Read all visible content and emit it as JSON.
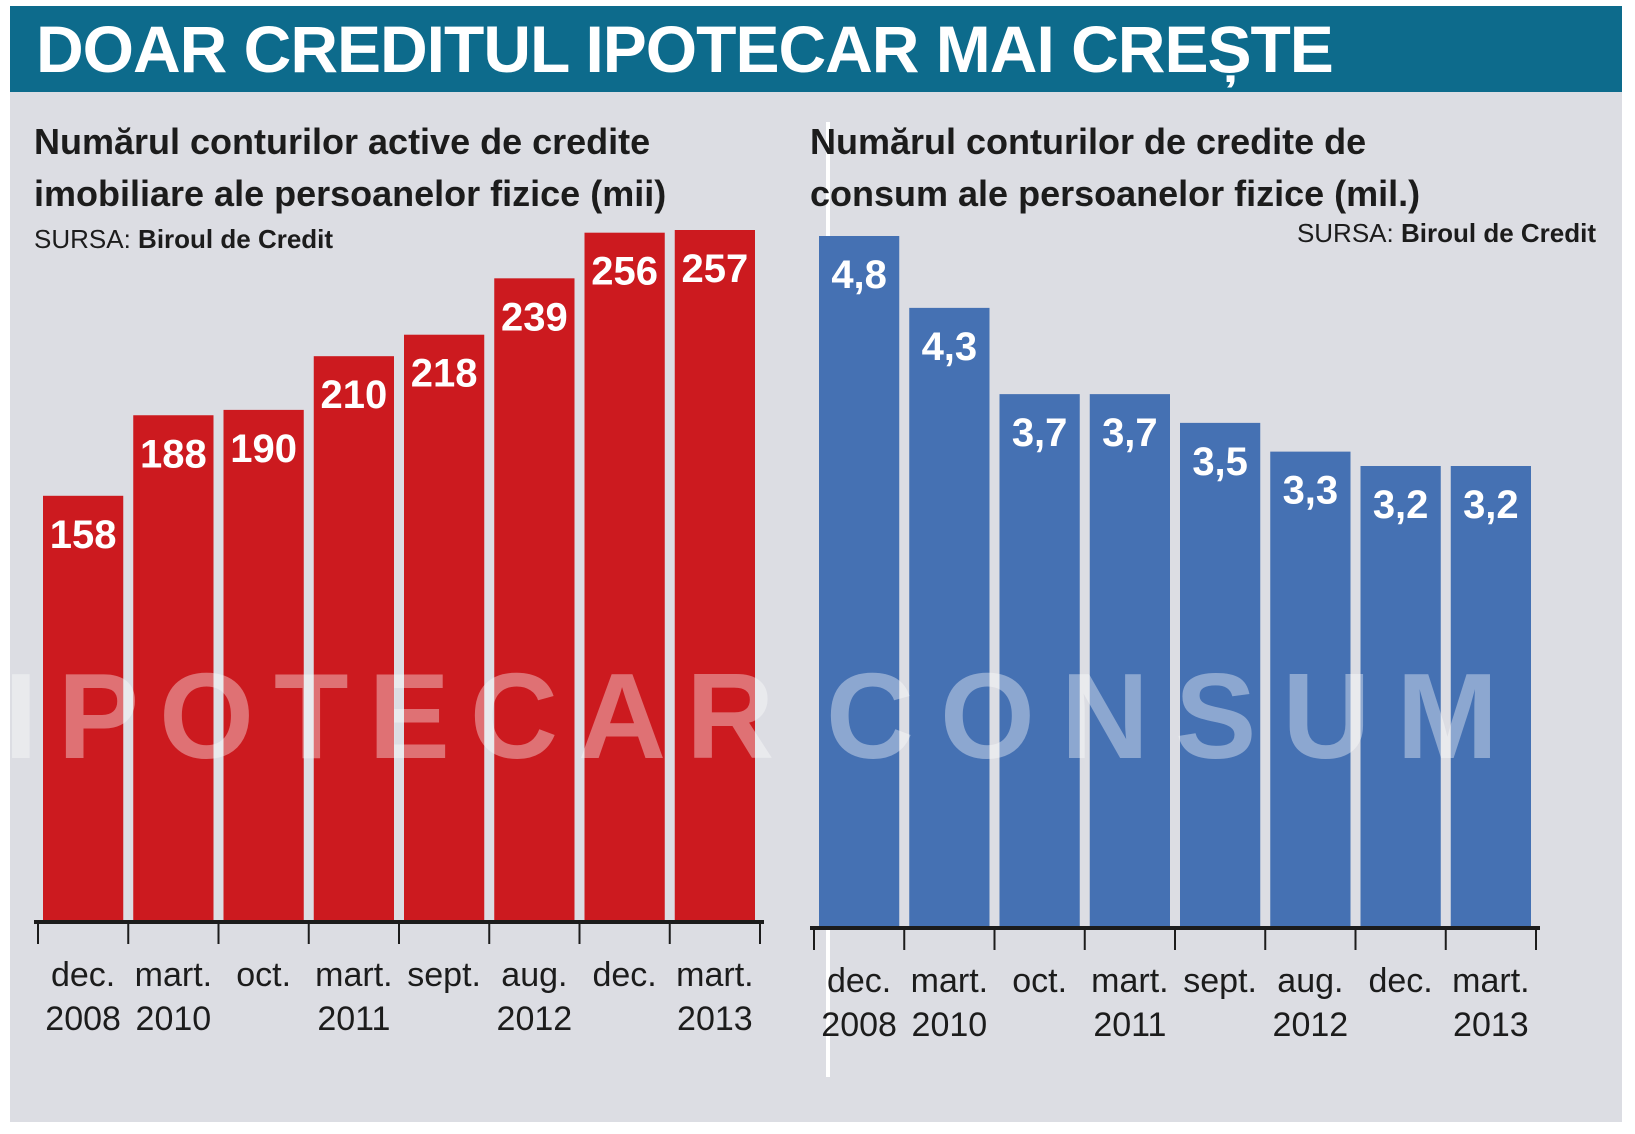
{
  "header": {
    "title": "DOAR CREDITUL IPOTECAR MAI CREȘTE"
  },
  "colors": {
    "header_bg": "#0d6b8c",
    "panel_bg": "#dcdde3",
    "left_bar": "#cc1a1f",
    "right_bar": "#4571b3"
  },
  "chart_data": [
    {
      "type": "bar",
      "title": "Numărul conturilor active de credite imobiliare ale persoanelor fizice (mii)",
      "title_lines": [
        "Numărul conturilor active de credite",
        "imobiliare ale persoanelor fizice (mii)"
      ],
      "source_prefix": "SURSA:",
      "source": "Biroul de Credit",
      "watermark": "IPOTECAR",
      "categories": [
        [
          "dec.",
          "2008"
        ],
        [
          "mart.",
          "2010"
        ],
        [
          "oct.",
          ""
        ],
        [
          "mart.",
          "2011"
        ],
        [
          "sept.",
          ""
        ],
        [
          "aug.",
          "2012"
        ],
        [
          "dec.",
          ""
        ],
        [
          "mart.",
          "2013"
        ]
      ],
      "values": [
        158,
        188,
        190,
        210,
        218,
        239,
        256,
        257
      ],
      "value_labels": [
        "158",
        "188",
        "190",
        "210",
        "218",
        "239",
        "256",
        "257"
      ],
      "ylim": [
        0,
        257
      ],
      "color": "#cc1a1f",
      "grid": false
    },
    {
      "type": "bar",
      "title": "Numărul conturilor de credite de consum ale persoanelor fizice (mil.)",
      "title_lines": [
        "Numărul conturilor de credite de",
        "consum ale persoanelor fizice (mil.)"
      ],
      "source_prefix": "SURSA:",
      "source": "Biroul de Credit",
      "watermark": "CONSUM",
      "categories": [
        [
          "dec.",
          "2008"
        ],
        [
          "mart.",
          "2010"
        ],
        [
          "oct.",
          ""
        ],
        [
          "mart.",
          "2011"
        ],
        [
          "sept.",
          ""
        ],
        [
          "aug.",
          "2012"
        ],
        [
          "dec.",
          ""
        ],
        [
          "mart.",
          "2013"
        ]
      ],
      "values": [
        4.8,
        4.3,
        3.7,
        3.7,
        3.5,
        3.3,
        3.2,
        3.2
      ],
      "value_labels": [
        "4,8",
        "4,3",
        "3,7",
        "3,7",
        "3,5",
        "3,3",
        "3,2",
        "3,2"
      ],
      "ylim": [
        0,
        4.8
      ],
      "color": "#4571b3",
      "grid": false
    }
  ]
}
